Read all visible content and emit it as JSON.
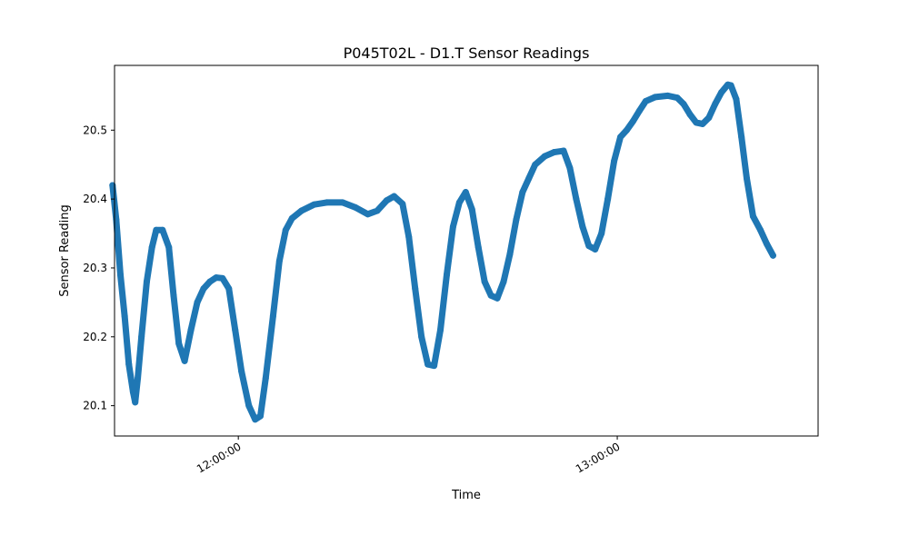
{
  "chart_data": {
    "type": "scatter",
    "title": "P045T02L - D1.T Sensor Readings",
    "xlabel": "Time",
    "ylabel": "Sensor Reading",
    "x_unit": "time of day (HH:MM:SS)",
    "xlim": [
      "11:40:24",
      "13:31:48"
    ],
    "ylim": [
      20.056,
      20.594
    ],
    "x_ticks": [
      "12:00:00",
      "13:00:00"
    ],
    "y_ticks": [
      "20.1",
      "20.2",
      "20.3",
      "20.4",
      "20.5"
    ],
    "grid": false,
    "legend": "none",
    "marker": "filled circle",
    "series": [
      {
        "color": "#1f77b4",
        "points": [
          [
            "11:40:05",
            20.42
          ],
          [
            "11:40:40",
            20.37
          ],
          [
            "11:41:20",
            20.29
          ],
          [
            "11:42:00",
            20.23
          ],
          [
            "11:42:40",
            20.16
          ],
          [
            "11:43:20",
            20.12
          ],
          [
            "11:43:40",
            20.105
          ],
          [
            "11:44:05",
            20.14
          ],
          [
            "11:44:40",
            20.2
          ],
          [
            "11:45:30",
            20.28
          ],
          [
            "11:46:20",
            20.33
          ],
          [
            "11:47:00",
            20.355
          ],
          [
            "11:48:00",
            20.355
          ],
          [
            "11:49:00",
            20.33
          ],
          [
            "11:49:45",
            20.26
          ],
          [
            "11:50:35",
            20.19
          ],
          [
            "11:51:30",
            20.165
          ],
          [
            "11:52:30",
            20.21
          ],
          [
            "11:53:30",
            20.25
          ],
          [
            "11:54:30",
            20.27
          ],
          [
            "11:55:30",
            20.28
          ],
          [
            "11:56:30",
            20.286
          ],
          [
            "11:57:30",
            20.285
          ],
          [
            "11:58:30",
            20.27
          ],
          [
            "11:59:30",
            20.21
          ],
          [
            "12:00:30",
            20.15
          ],
          [
            "12:01:40",
            20.1
          ],
          [
            "12:02:40",
            20.08
          ],
          [
            "12:03:30",
            20.085
          ],
          [
            "12:04:20",
            20.14
          ],
          [
            "12:05:30",
            20.23
          ],
          [
            "12:06:30",
            20.31
          ],
          [
            "12:07:30",
            20.355
          ],
          [
            "12:08:30",
            20.372
          ],
          [
            "12:10:00",
            20.383
          ],
          [
            "12:12:00",
            20.392
          ],
          [
            "12:14:00",
            20.395
          ],
          [
            "12:16:30",
            20.395
          ],
          [
            "12:18:30",
            20.388
          ],
          [
            "12:20:30",
            20.378
          ],
          [
            "12:22:00",
            20.383
          ],
          [
            "12:23:30",
            20.398
          ],
          [
            "12:24:40",
            20.404
          ],
          [
            "12:26:00",
            20.393
          ],
          [
            "12:27:00",
            20.345
          ],
          [
            "12:28:00",
            20.27
          ],
          [
            "12:29:00",
            20.2
          ],
          [
            "12:30:00",
            20.16
          ],
          [
            "12:31:00",
            20.158
          ],
          [
            "12:32:00",
            20.21
          ],
          [
            "12:33:00",
            20.29
          ],
          [
            "12:34:00",
            20.36
          ],
          [
            "12:35:00",
            20.395
          ],
          [
            "12:36:00",
            20.41
          ],
          [
            "12:37:00",
            20.385
          ],
          [
            "12:38:00",
            20.33
          ],
          [
            "12:39:00",
            20.28
          ],
          [
            "12:40:00",
            20.26
          ],
          [
            "12:41:00",
            20.256
          ],
          [
            "12:42:00",
            20.28
          ],
          [
            "12:43:00",
            20.32
          ],
          [
            "12:44:00",
            20.37
          ],
          [
            "12:45:00",
            20.41
          ],
          [
            "12:46:00",
            20.43
          ],
          [
            "12:47:00",
            20.45
          ],
          [
            "12:48:30",
            20.462
          ],
          [
            "12:50:00",
            20.468
          ],
          [
            "12:51:30",
            20.47
          ],
          [
            "12:52:30",
            20.445
          ],
          [
            "12:53:30",
            20.4
          ],
          [
            "12:54:30",
            20.36
          ],
          [
            "12:55:30",
            20.332
          ],
          [
            "12:56:30",
            20.327
          ],
          [
            "12:57:30",
            20.35
          ],
          [
            "12:58:30",
            20.4
          ],
          [
            "12:59:30",
            20.455
          ],
          [
            "13:00:30",
            20.49
          ],
          [
            "13:01:30",
            20.5
          ],
          [
            "13:02:30",
            20.513
          ],
          [
            "13:03:30",
            20.528
          ],
          [
            "13:04:30",
            20.542
          ],
          [
            "13:06:00",
            20.548
          ],
          [
            "13:08:00",
            20.55
          ],
          [
            "13:09:30",
            20.547
          ],
          [
            "13:10:30",
            20.538
          ],
          [
            "13:11:30",
            20.523
          ],
          [
            "13:12:30",
            20.511
          ],
          [
            "13:13:30",
            20.509
          ],
          [
            "13:14:30",
            20.518
          ],
          [
            "13:15:30",
            20.538
          ],
          [
            "13:16:30",
            20.555
          ],
          [
            "13:17:30",
            20.566
          ],
          [
            "13:18:00",
            20.565
          ],
          [
            "13:18:50",
            20.545
          ],
          [
            "13:19:40",
            20.49
          ],
          [
            "13:20:30",
            20.43
          ],
          [
            "13:21:30",
            20.375
          ],
          [
            "13:22:40",
            20.355
          ],
          [
            "13:23:40",
            20.335
          ],
          [
            "13:24:40",
            20.318
          ]
        ]
      }
    ]
  }
}
